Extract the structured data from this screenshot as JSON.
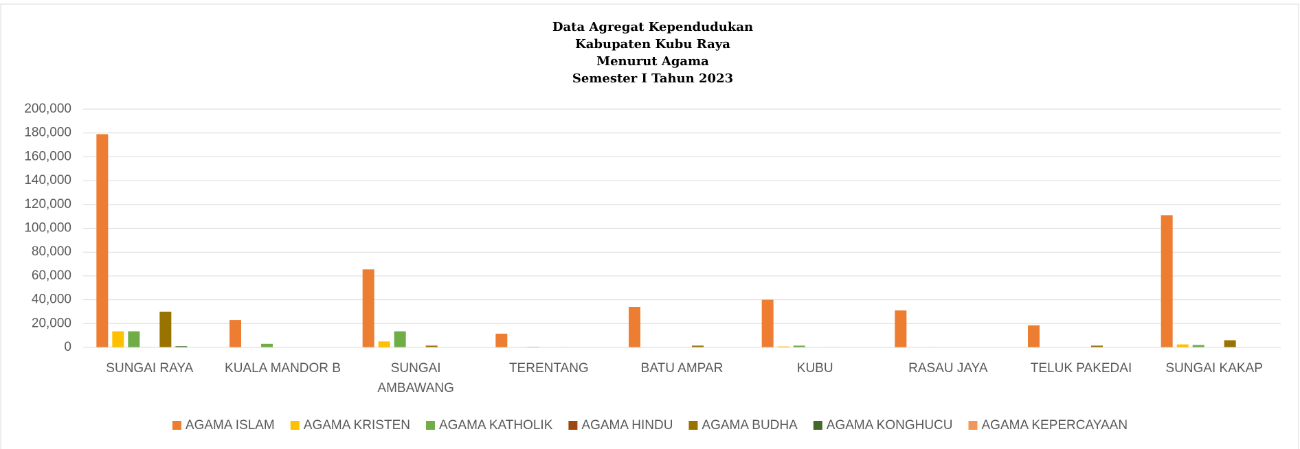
{
  "chart_data": {
    "type": "bar",
    "title": [
      "Data Agregat Kependudukan",
      "Kabupaten Kubu Raya",
      "Menurut Agama",
      "Semester I Tahun 2023"
    ],
    "categories": [
      "SUNGAI RAYA",
      "KUALA MANDOR B",
      "SUNGAI AMBAWANG",
      "TERENTANG",
      "BATU AMPAR",
      "KUBU",
      "RASAU JAYA",
      "TELUK PAKEDAI",
      "SUNGAI KAKAP"
    ],
    "series": [
      {
        "name": "AGAMA ISLAM",
        "color": "#ED7D31",
        "values": [
          179000,
          23000,
          65500,
          11500,
          34000,
          40000,
          31000,
          18500,
          111000
        ]
      },
      {
        "name": "AGAMA KRISTEN",
        "color": "#FFC000",
        "values": [
          13500,
          300,
          5000,
          300,
          300,
          800,
          300,
          100,
          2500
        ]
      },
      {
        "name": "AGAMA KATHOLIK",
        "color": "#70AD47",
        "values": [
          13500,
          3000,
          13500,
          500,
          200,
          1500,
          300,
          100,
          2000
        ]
      },
      {
        "name": "AGAMA HINDU",
        "color": "#9E480E",
        "values": [
          300,
          0,
          100,
          0,
          0,
          0,
          0,
          0,
          50
        ]
      },
      {
        "name": "AGAMA BUDHA",
        "color": "#997300",
        "values": [
          30000,
          200,
          1500,
          300,
          1500,
          300,
          100,
          1500,
          6000
        ]
      },
      {
        "name": "AGAMA KONGHUCU",
        "color": "#43682B",
        "values": [
          1000,
          0,
          50,
          0,
          0,
          0,
          0,
          0,
          50
        ]
      },
      {
        "name": "AGAMA KEPERCAYAAN",
        "color": "#F1975A",
        "values": [
          0,
          0,
          0,
          0,
          0,
          0,
          0,
          0,
          0
        ]
      }
    ],
    "ylim": [
      0,
      200000
    ],
    "yticks": [
      0,
      {
        "value": 20000,
        "label": "20,000"
      },
      {
        "value": 40000,
        "label": "40,000"
      },
      {
        "value": 60000,
        "label": "60,000"
      },
      {
        "value": 80000,
        "label": "80,000"
      },
      {
        "value": 100000,
        "label": "100,000"
      },
      {
        "value": 120000,
        "label": "120,000"
      },
      {
        "value": 140000,
        "label": "140,000"
      },
      {
        "value": 160000,
        "label": "160,000"
      },
      {
        "value": 180000,
        "label": "180,000"
      },
      {
        "value": 200000,
        "label": "200,000"
      }
    ],
    "grid": true,
    "legend": "bottom"
  }
}
